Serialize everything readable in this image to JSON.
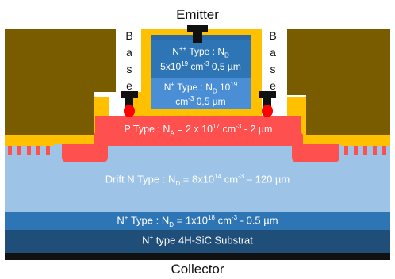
{
  "terminals": {
    "emitter": "Emitter",
    "collector": "Collector",
    "base_left": [
      "B",
      "a",
      "s",
      "e"
    ],
    "base_right": [
      "B",
      "a",
      "s",
      "e"
    ]
  },
  "layers": {
    "npp_emitter": {
      "line1": [
        "N",
        "++",
        " Type : N",
        "D",
        ""
      ],
      "line2": [
        "5x10",
        "19",
        " cm",
        "-3",
        " 0,5 µm"
      ]
    },
    "np_emitter": {
      "line1": [
        "N",
        "+",
        " Type : N",
        "D",
        " 10",
        "19"
      ],
      "line2": [
        "cm",
        "-3",
        "  0,5 µm"
      ]
    },
    "p_base": [
      "P Type : N",
      "A",
      " = 2 x 10",
      "17",
      " cm",
      "-3",
      " - 2 µm"
    ],
    "drift": [
      "Drift N Type : N",
      "D",
      " = 8x10",
      "14",
      " cm",
      "-3",
      " – 120 µm"
    ],
    "buffer": [
      "N",
      "+",
      " Type : N",
      "D",
      " = 1x10",
      "18",
      " cm",
      "-3",
      " - 0.5 µm"
    ],
    "substrate": [
      "N",
      "+",
      " type 4H-SiC Substrat"
    ]
  },
  "colors": {
    "contact_metal": "#7a5c00",
    "oxide": "#ffc000",
    "p_region": "#ff5050",
    "drift": "#9dc3e6",
    "buffer": "#2e75b6",
    "substrate": "#1f4e79",
    "emitter_npp": "#2e75b6",
    "emitter_np": "#4a8fd6",
    "electrode": "#111111"
  }
}
